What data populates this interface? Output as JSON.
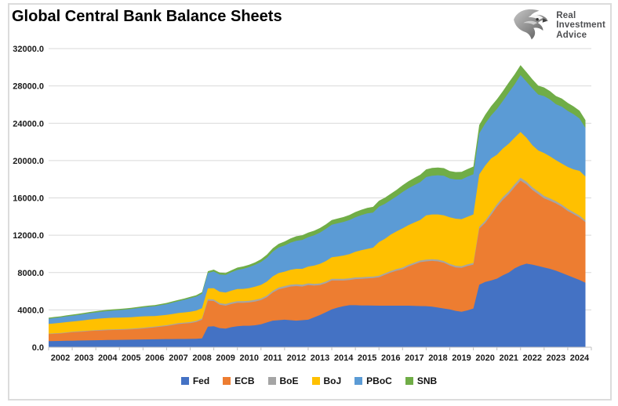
{
  "header": {
    "title": "Global Central Bank Balance Sheets",
    "logo_lines": {
      "0": "Real",
      "1": "Investment",
      "2": "Advice"
    }
  },
  "colors": {
    "gridline": "#d9d9d9",
    "axis_line": "#bfbfbf",
    "tick": "#bfbfbf",
    "axis_text": "#1a1a1a",
    "border": "#dcdcdc",
    "logo_text": "#4e4f52"
  },
  "chart_data": {
    "type": "area",
    "stacked": true,
    "title": "Global Central Bank Balance Sheets",
    "xlabel": "",
    "ylabel": "",
    "grid": "horizontal",
    "legend_position": "bottom",
    "ylim": [
      0,
      32000
    ],
    "y_ticks": [
      0,
      4000,
      8000,
      12000,
      16000,
      20000,
      24000,
      28000,
      32000
    ],
    "y_tick_labels": [
      "0.0",
      "4000.0",
      "8000.0",
      "12000.0",
      "16000.0",
      "20000.0",
      "24000.0",
      "28000.0",
      "32000.0"
    ],
    "x_tick_labels": [
      "2002",
      "2003",
      "2004",
      "2005",
      "2006",
      "2007",
      "2008",
      "2009",
      "2010",
      "2011",
      "2012",
      "2013",
      "2014",
      "2015",
      "2016",
      "2017",
      "2018",
      "2019",
      "2020",
      "2021",
      "2022",
      "2023",
      "2024"
    ],
    "x_start": 2002.0,
    "x_step": 0.25,
    "x_axis_years_span": 23,
    "series": [
      {
        "name": "Fed",
        "color": "#4472C4",
        "values": [
          650,
          660,
          670,
          685,
          700,
          710,
          720,
          735,
          750,
          760,
          770,
          780,
          790,
          800,
          810,
          820,
          830,
          840,
          850,
          860,
          870,
          875,
          880,
          885,
          890,
          900,
          950,
          2200,
          2250,
          2050,
          2000,
          2150,
          2250,
          2300,
          2300,
          2350,
          2450,
          2650,
          2850,
          2900,
          2950,
          2900,
          2850,
          2900,
          2950,
          3200,
          3450,
          3750,
          4050,
          4250,
          4400,
          4500,
          4500,
          4480,
          4470,
          4460,
          4450,
          4450,
          4450,
          4450,
          4450,
          4450,
          4430,
          4410,
          4400,
          4350,
          4250,
          4150,
          4050,
          3900,
          3800,
          3950,
          4150,
          6700,
          7000,
          7150,
          7350,
          7700,
          8000,
          8450,
          8750,
          8950,
          8850,
          8700,
          8550,
          8400,
          8200,
          7950,
          7700,
          7450,
          7200,
          6900
        ]
      },
      {
        "name": "ECB",
        "color": "#ED7D31",
        "values": [
          750,
          780,
          800,
          850,
          900,
          930,
          960,
          1000,
          1020,
          1040,
          1060,
          1070,
          1070,
          1080,
          1100,
          1140,
          1180,
          1230,
          1280,
          1340,
          1400,
          1500,
          1600,
          1650,
          1700,
          1800,
          2000,
          2800,
          2700,
          2500,
          2450,
          2480,
          2500,
          2450,
          2500,
          2550,
          2600,
          2700,
          3000,
          3300,
          3400,
          3600,
          3700,
          3600,
          3700,
          3400,
          3200,
          3100,
          3100,
          2900,
          2750,
          2700,
          2800,
          2850,
          2900,
          2950,
          3050,
          3300,
          3550,
          3750,
          3900,
          4200,
          4450,
          4700,
          4800,
          4900,
          4950,
          4900,
          4700,
          4650,
          4700,
          4750,
          4700,
          6000,
          6300,
          7000,
          7700,
          8100,
          8400,
          8700,
          9100,
          8500,
          8000,
          7700,
          7400,
          7300,
          7200,
          7100,
          6900,
          6800,
          6700,
          6500
        ]
      },
      {
        "name": "BoE",
        "color": "#A5A5A5",
        "values": [
          45,
          46,
          48,
          50,
          52,
          54,
          56,
          58,
          60,
          62,
          64,
          66,
          68,
          70,
          72,
          74,
          76,
          80,
          84,
          88,
          92,
          96,
          100,
          105,
          110,
          115,
          130,
          160,
          165,
          170,
          175,
          180,
          180,
          180,
          180,
          180,
          180,
          185,
          190,
          195,
          200,
          200,
          200,
          200,
          195,
          190,
          185,
          180,
          180,
          180,
          180,
          180,
          175,
          170,
          165,
          160,
          160,
          165,
          170,
          175,
          180,
          180,
          180,
          180,
          180,
          180,
          180,
          180,
          175,
          175,
          175,
          175,
          180,
          220,
          250,
          270,
          280,
          290,
          300,
          310,
          310,
          300,
          290,
          280,
          260,
          250,
          240,
          230,
          220,
          210,
          200,
          190
        ]
      },
      {
        "name": "BoJ",
        "color": "#FFC000",
        "values": [
          1050,
          1070,
          1090,
          1100,
          1100,
          1120,
          1150,
          1180,
          1200,
          1220,
          1230,
          1240,
          1250,
          1240,
          1230,
          1230,
          1220,
          1180,
          1130,
          1110,
          1100,
          1090,
          1080,
          1090,
          1100,
          1100,
          1100,
          1150,
          1200,
          1220,
          1230,
          1250,
          1300,
          1320,
          1350,
          1400,
          1450,
          1500,
          1550,
          1550,
          1550,
          1600,
          1650,
          1700,
          1800,
          1950,
          2100,
          2200,
          2300,
          2400,
          2500,
          2600,
          2750,
          2900,
          3000,
          3100,
          3600,
          3700,
          3900,
          4050,
          4200,
          4250,
          4300,
          4350,
          4750,
          4800,
          4850,
          4900,
          5000,
          5050,
          5050,
          5100,
          5200,
          5600,
          5900,
          5800,
          5300,
          5200,
          5100,
          5000,
          4900,
          4700,
          4500,
          4400,
          4600,
          4500,
          4400,
          4400,
          4500,
          4600,
          4800,
          4700
        ]
      },
      {
        "name": "PBoC",
        "color": "#5B9BD5",
        "values": [
          550,
          570,
          590,
          610,
          620,
          640,
          660,
          680,
          700,
          730,
          750,
          780,
          800,
          840,
          880,
          920,
          950,
          1000,
          1050,
          1100,
          1150,
          1220,
          1280,
          1350,
          1450,
          1500,
          1550,
          1650,
          1800,
          1850,
          1900,
          1980,
          2050,
          2150,
          2250,
          2350,
          2450,
          2550,
          2650,
          2750,
          2800,
          2900,
          3000,
          3100,
          3150,
          3250,
          3350,
          3450,
          3500,
          3550,
          3600,
          3650,
          3700,
          3750,
          3800,
          3750,
          3800,
          3750,
          3700,
          3750,
          3900,
          3950,
          4000,
          4050,
          4100,
          4150,
          4200,
          4250,
          4150,
          4200,
          4250,
          4300,
          4300,
          4400,
          4500,
          4600,
          4900,
          5100,
          5500,
          5700,
          6100,
          6000,
          6100,
          6000,
          6100,
          6100,
          6000,
          6100,
          6000,
          5900,
          5600,
          5200
        ]
      },
      {
        "name": "SNB",
        "color": "#70AD47",
        "values": [
          110,
          112,
          115,
          118,
          120,
          122,
          125,
          128,
          130,
          130,
          130,
          130,
          128,
          126,
          125,
          126,
          128,
          128,
          128,
          128,
          130,
          132,
          134,
          138,
          142,
          150,
          170,
          190,
          200,
          205,
          210,
          220,
          250,
          260,
          265,
          270,
          300,
          330,
          360,
          380,
          430,
          460,
          490,
          500,
          490,
          490,
          490,
          490,
          500,
          510,
          520,
          540,
          560,
          580,
          600,
          620,
          640,
          660,
          680,
          700,
          720,
          750,
          780,
          800,
          830,
          830,
          820,
          810,
          800,
          800,
          810,
          820,
          830,
          900,
          950,
          1000,
          1050,
          1060,
          1070,
          1080,
          1070,
          1030,
          980,
          950,
          920,
          900,
          880,
          870,
          860,
          850,
          850,
          850
        ]
      }
    ]
  }
}
